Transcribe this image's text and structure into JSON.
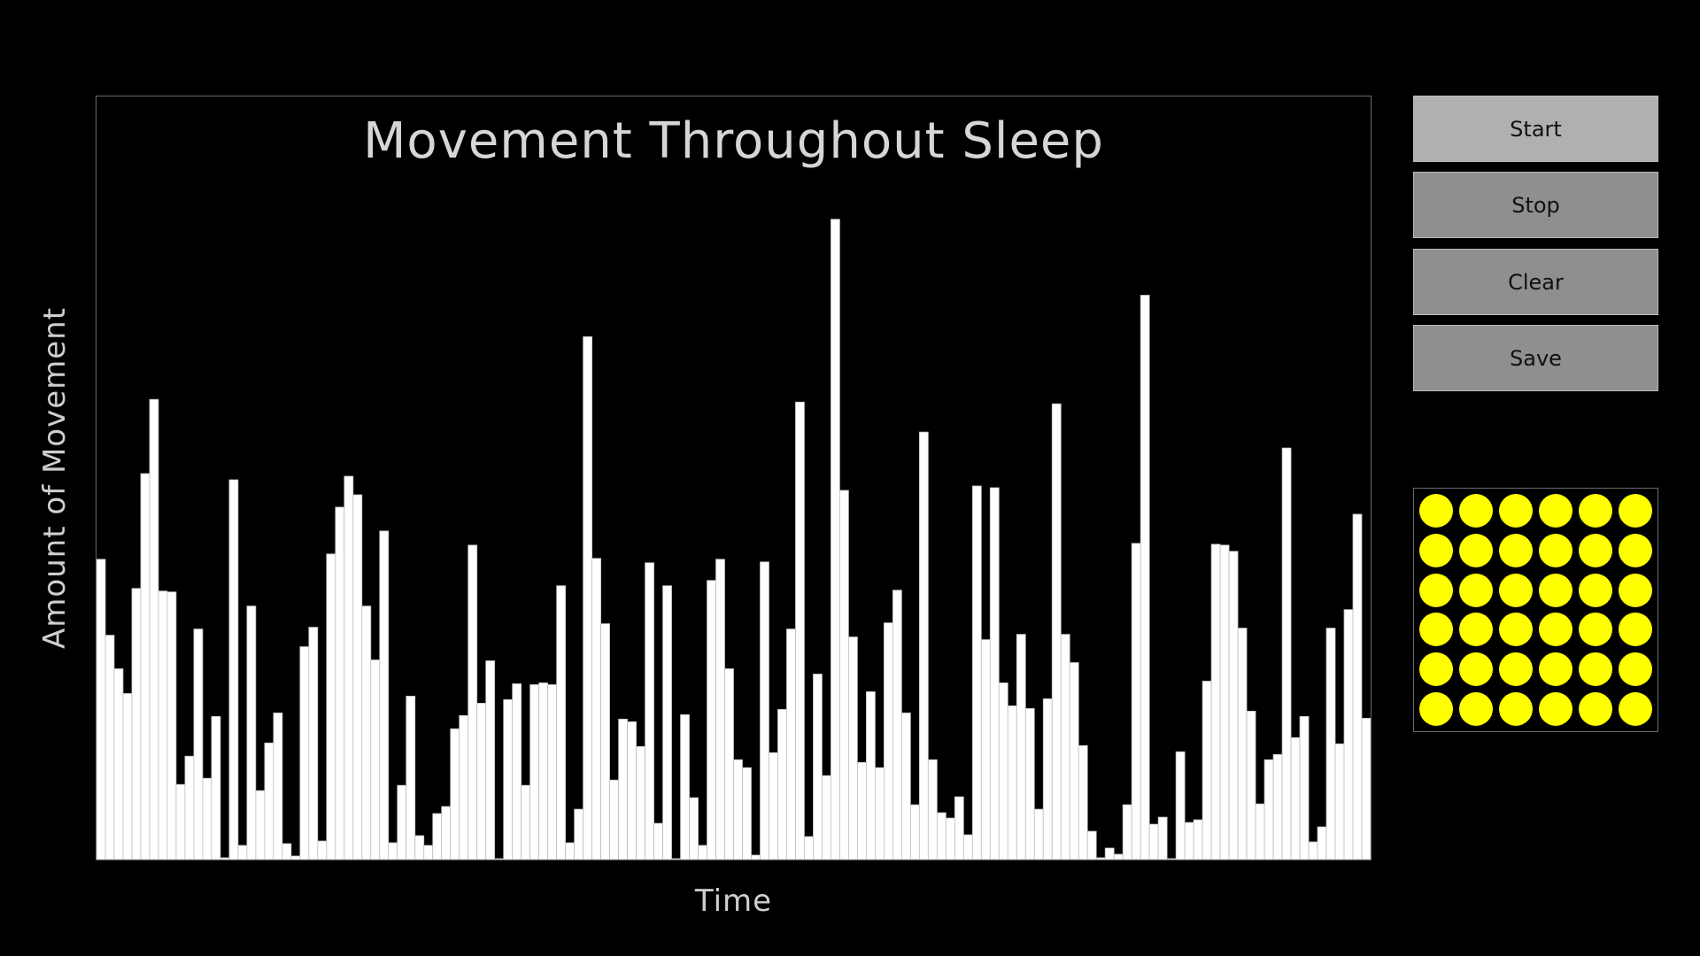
{
  "chart": {
    "title": "Movement Throughout Sleep",
    "xlabel": "Time",
    "ylabel": "Amount of Movement"
  },
  "controls": {
    "start_label": "Start",
    "stop_label": "Stop",
    "clear_label": "Clear",
    "save_label": "Save"
  },
  "led_panel": {
    "rows": 6,
    "cols": 6,
    "color": "#ffff00"
  },
  "colors": {
    "background": "#000000",
    "bar_fill": "#ffffff",
    "bar_stroke": "#bdbdbd",
    "start_button": "#b0b0b0",
    "other_buttons": "#8f8f8f",
    "title_text": "#d6d6d6"
  },
  "chart_data": {
    "type": "bar",
    "title": "Movement Throughout Sleep",
    "xlabel": "Time",
    "ylabel": "Amount of Movement",
    "ylim": [
      0,
      864
    ],
    "grid": false,
    "values": [
      340,
      254,
      216,
      188,
      307,
      437,
      521,
      304,
      303,
      85,
      117,
      261,
      92,
      162,
      2,
      430,
      16,
      287,
      78,
      132,
      166,
      18,
      4,
      241,
      263,
      21,
      346,
      399,
      434,
      413,
      287,
      226,
      372,
      19,
      84,
      185,
      27,
      16,
      52,
      60,
      148,
      163,
      356,
      177,
      225,
      1,
      181,
      199,
      84,
      198,
      200,
      198,
      310,
      19,
      57,
      592,
      341,
      267,
      90,
      159,
      156,
      128,
      336,
      41,
      310,
      1,
      164,
      70,
      16,
      316,
      340,
      216,
      113,
      104,
      5,
      337,
      121,
      170,
      261,
      518,
      26,
      210,
      95,
      725,
      418,
      252,
      110,
      190,
      104,
      268,
      305,
      166,
      62,
      484,
      113,
      53,
      47,
      71,
      28,
      423,
      249,
      421,
      200,
      174,
      255,
      171,
      57,
      182,
      516,
      255,
      223,
      129,
      32,
      2,
      13,
      6,
      62,
      358,
      639,
      40,
      48,
      1,
      122,
      42,
      45,
      202,
      357,
      356,
      349,
      262,
      168,
      63,
      113,
      119,
      466,
      138,
      162,
      20,
      37,
      262,
      131,
      283,
      391,
      160
    ]
  }
}
